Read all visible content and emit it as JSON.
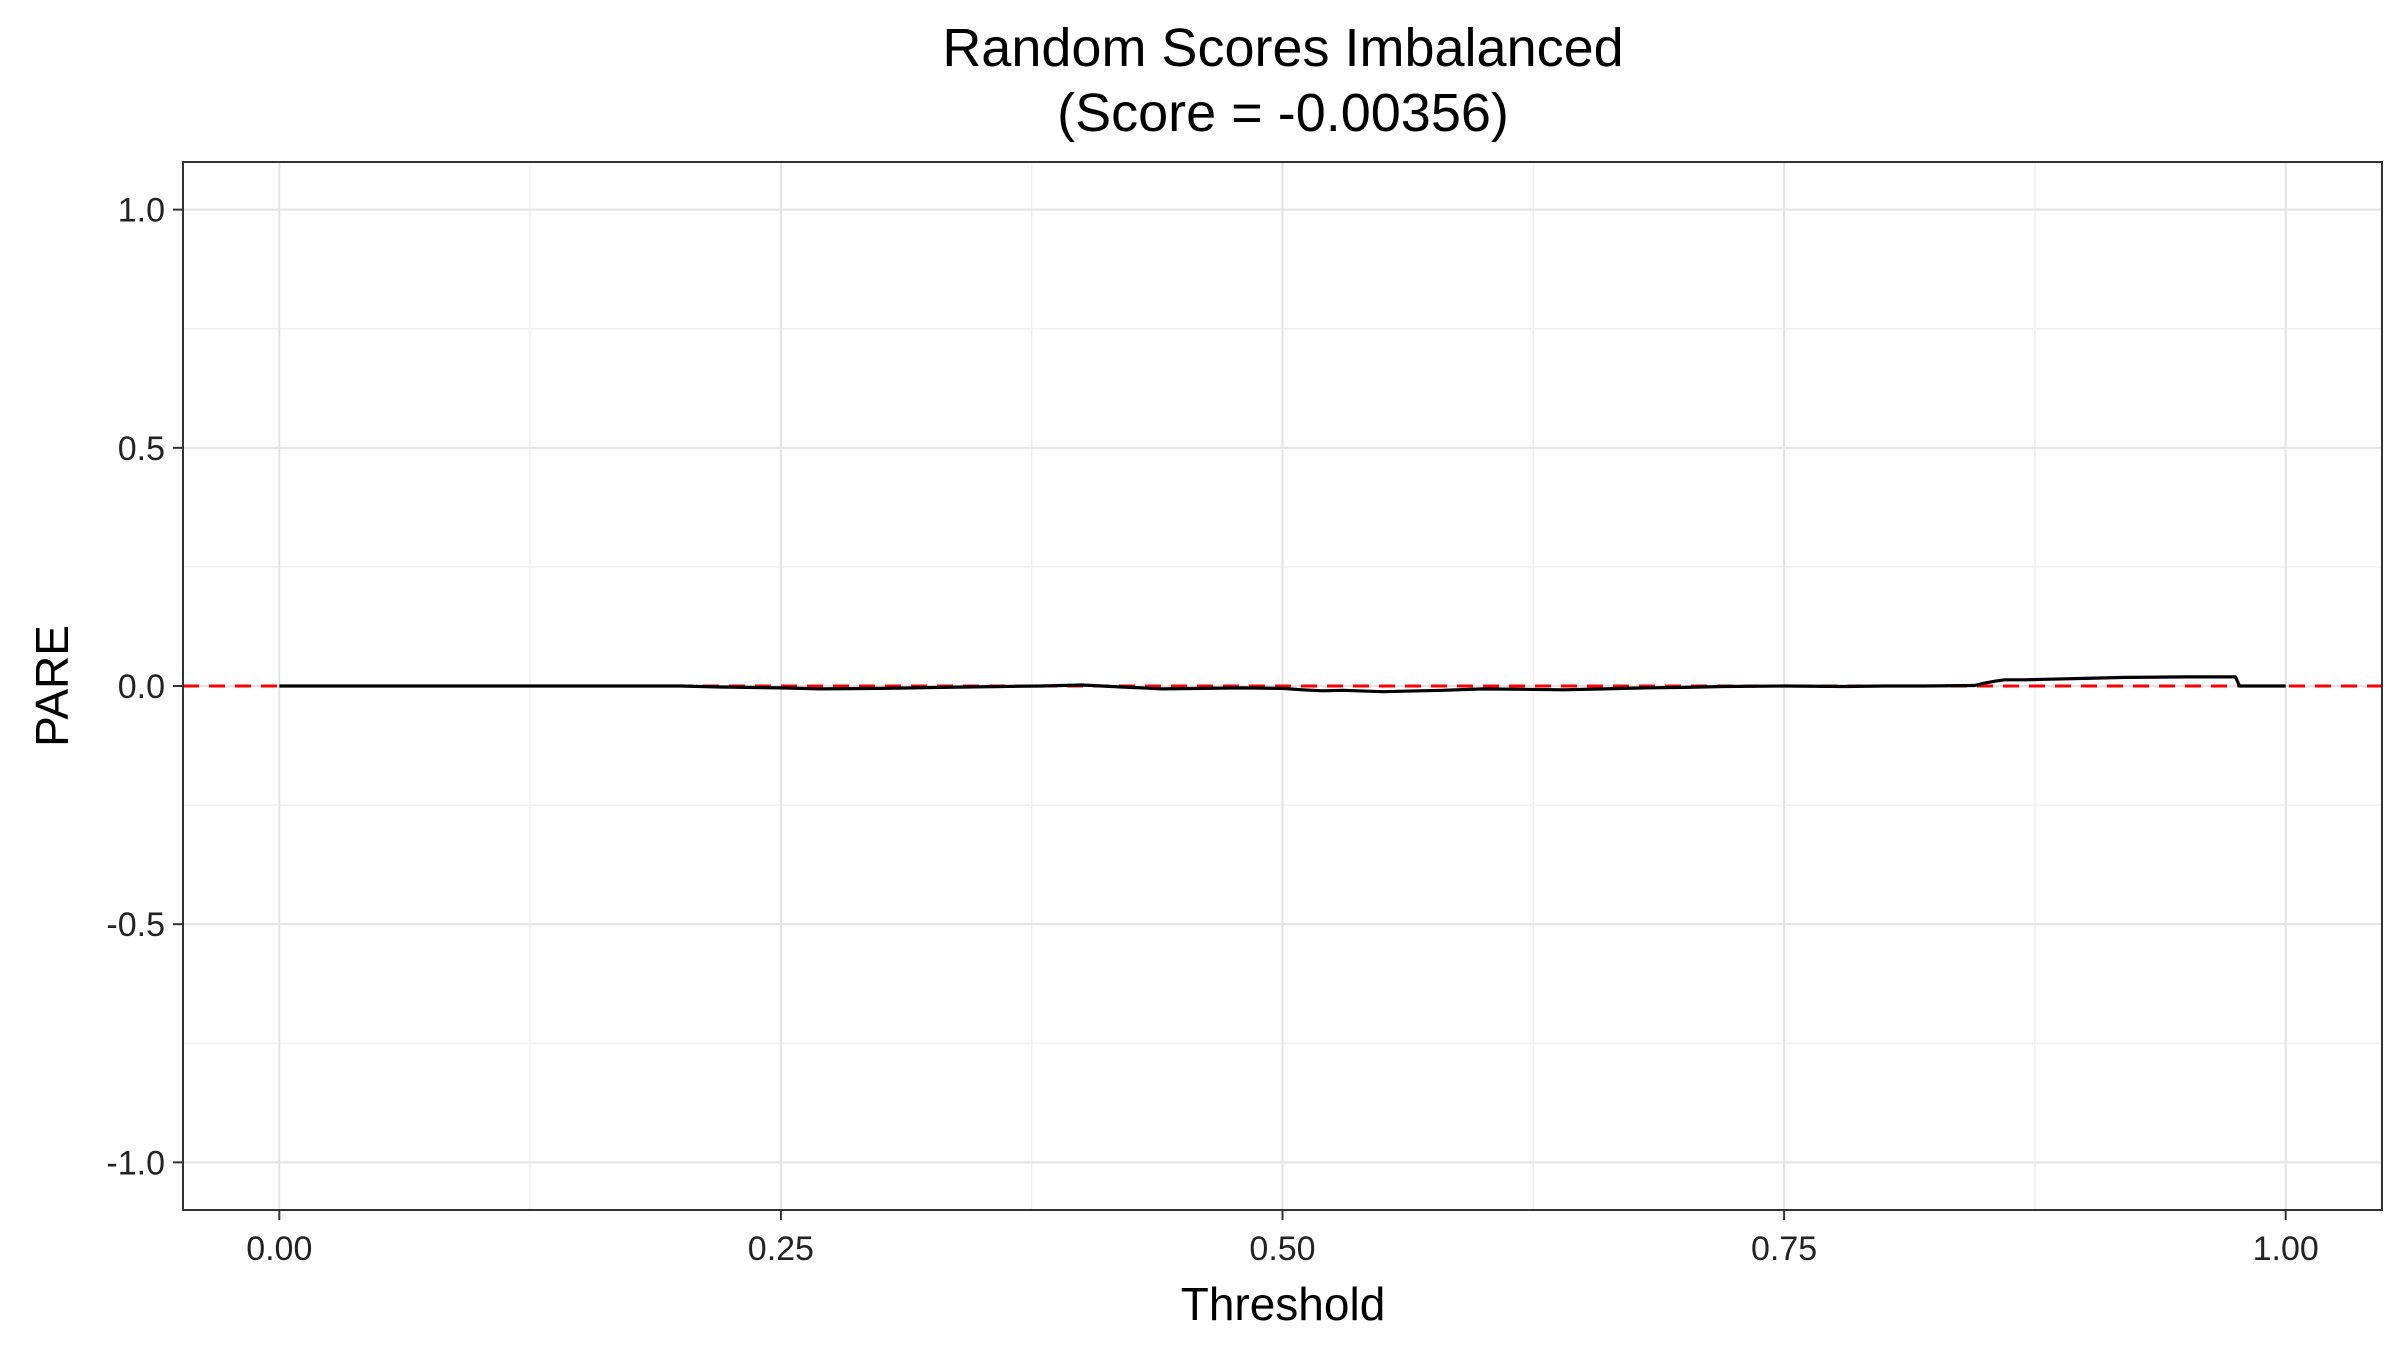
{
  "chart_data": {
    "type": "line",
    "title": "Random Scores Imbalanced",
    "subtitle": "(Score = -0.00356)",
    "xlabel": "Threshold",
    "ylabel": "PARE",
    "xlim": [
      -0.048,
      1.048
    ],
    "ylim": [
      -1.1,
      1.1
    ],
    "x_ticks": [
      0,
      0.25,
      0.5,
      0.75,
      1.0
    ],
    "x_tick_labels": [
      "0.00",
      "0.25",
      "0.50",
      "0.75",
      "1.00"
    ],
    "y_ticks": [
      -1.0,
      -0.5,
      0.0,
      0.5,
      1.0
    ],
    "y_tick_labels": [
      "-1.0",
      "-0.5",
      "0.0",
      "0.5",
      "1.0"
    ],
    "grid": true,
    "reference_line": {
      "y": 0,
      "style": "dashed",
      "color": "#ff0000"
    },
    "series_color": "#000000",
    "series": [
      {
        "x": [
          0.0,
          0.05,
          0.1,
          0.15,
          0.2,
          0.22,
          0.25,
          0.27,
          0.3,
          0.33,
          0.36,
          0.38,
          0.4,
          0.41,
          0.42,
          0.43,
          0.44,
          0.46,
          0.48,
          0.5,
          0.51,
          0.52,
          0.53,
          0.55,
          0.56,
          0.58,
          0.6,
          0.62,
          0.64,
          0.66,
          0.68,
          0.7,
          0.72,
          0.75,
          0.78,
          0.8,
          0.82,
          0.845,
          0.85,
          0.855,
          0.86,
          0.87,
          0.88,
          0.9,
          0.92,
          0.95,
          0.975,
          0.977,
          0.98,
          1.0
        ],
        "y": [
          0.0,
          0.0,
          0.0,
          0.0,
          0.0,
          -0.002,
          -0.004,
          -0.006,
          -0.005,
          -0.003,
          -0.001,
          0.0,
          0.002,
          0.0,
          -0.002,
          -0.004,
          -0.006,
          -0.005,
          -0.004,
          -0.005,
          -0.008,
          -0.01,
          -0.009,
          -0.012,
          -0.011,
          -0.009,
          -0.006,
          -0.007,
          -0.008,
          -0.006,
          -0.004,
          -0.003,
          -0.001,
          0.0,
          -0.001,
          0.0,
          0.0,
          0.001,
          0.006,
          0.01,
          0.013,
          0.013,
          0.014,
          0.016,
          0.018,
          0.019,
          0.019,
          0.0,
          0.0,
          0.0
        ]
      }
    ]
  }
}
